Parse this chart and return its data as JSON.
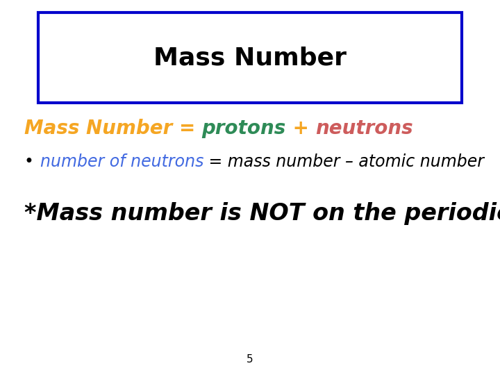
{
  "title": "Mass Number",
  "title_box_color": "#0000cc",
  "background_color": "#ffffff",
  "line1_parts": [
    {
      "text": "Mass Number ",
      "color": "#f5a623",
      "bold": true,
      "italic": true
    },
    {
      "text": "= ",
      "color": "#f5a623",
      "bold": true,
      "italic": true
    },
    {
      "text": "protons",
      "color": "#2e8b57",
      "bold": true,
      "italic": true
    },
    {
      "text": " + ",
      "color": "#f5a623",
      "bold": true,
      "italic": true
    },
    {
      "text": "neutrons",
      "color": "#cd5c5c",
      "bold": true,
      "italic": true
    }
  ],
  "line2_bullet": "•",
  "line2_parts": [
    {
      "text": "number of neutrons",
      "color": "#4169e1",
      "bold": false,
      "italic": true
    },
    {
      "text": " = mass number – atomic number",
      "color": "#000000",
      "bold": false,
      "italic": true
    }
  ],
  "line3": "*Mass number is NOT on the periodic table",
  "line3_color": "#000000",
  "page_number": "5",
  "title_fontsize": 26,
  "line1_fontsize": 20,
  "line2_fontsize": 17,
  "line3_fontsize": 24
}
